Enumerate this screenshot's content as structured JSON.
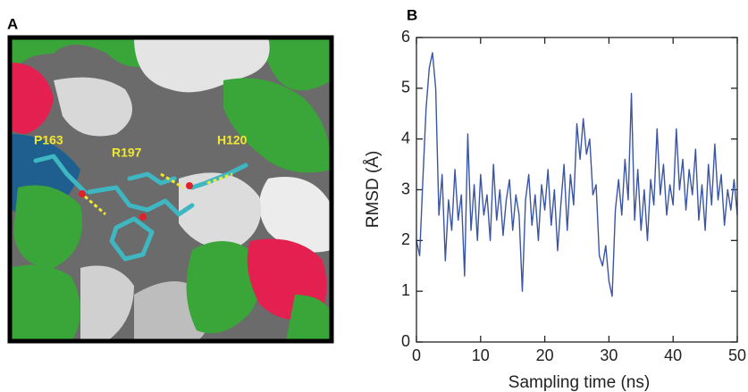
{
  "panel_a": {
    "label": "A",
    "residue_labels": [
      "P163",
      "R197",
      "H120"
    ]
  },
  "chart_data": {
    "type": "line",
    "panel_label": "B",
    "x_label": "Sampling time (ns)",
    "y_label": "RMSD (Å)",
    "color": "#3a55a4",
    "x": [
      0,
      0.5,
      1,
      1.5,
      2,
      2.5,
      3,
      3.5,
      4,
      4.5,
      5,
      5.5,
      6,
      6.5,
      7,
      7.5,
      8,
      8.5,
      9,
      9.5,
      10,
      10.5,
      11,
      11.5,
      12,
      12.5,
      13,
      13.5,
      14,
      14.5,
      15,
      15.5,
      16,
      16.5,
      17,
      17.5,
      18,
      18.5,
      19,
      19.5,
      20,
      20.5,
      21,
      21.5,
      22,
      22.5,
      23,
      23.5,
      24,
      24.5,
      25,
      25.5,
      26,
      26.5,
      27,
      27.5,
      28,
      28.5,
      29,
      29.5,
      30,
      30.5,
      31,
      31.5,
      32,
      32.5,
      33,
      33.5,
      34,
      34.5,
      35,
      35.5,
      36,
      36.5,
      37,
      37.5,
      38,
      38.5,
      39,
      39.5,
      40,
      40.5,
      41,
      41.5,
      42,
      42.5,
      43,
      43.5,
      44,
      44.5,
      45,
      45.5,
      46,
      46.5,
      47,
      47.5,
      48,
      48.5,
      49,
      49.5,
      50
    ],
    "values": [
      2.0,
      1.7,
      3.2,
      4.6,
      5.4,
      5.7,
      5.0,
      2.5,
      3.3,
      1.6,
      2.8,
      2.2,
      3.4,
      2.4,
      2.9,
      1.3,
      4.1,
      2.2,
      3.1,
      2.0,
      3.3,
      2.5,
      2.9,
      2.0,
      3.5,
      2.4,
      3.0,
      2.1,
      2.8,
      3.2,
      2.2,
      2.9,
      2.5,
      1.0,
      2.8,
      3.3,
      2.3,
      2.9,
      2.0,
      3.1,
      2.6,
      3.4,
      2.3,
      3.0,
      1.8,
      2.7,
      3.5,
      2.2,
      3.3,
      2.7,
      4.3,
      3.6,
      4.4,
      3.7,
      4.0,
      2.9,
      3.1,
      1.7,
      1.5,
      1.9,
      1.2,
      0.9,
      2.6,
      3.2,
      2.5,
      3.6,
      2.8,
      4.9,
      2.4,
      3.4,
      2.2,
      3.0,
      2.0,
      3.2,
      2.7,
      4.2,
      2.9,
      3.5,
      2.5,
      3.1,
      2.7,
      4.2,
      3.0,
      3.6,
      2.6,
      3.4,
      2.9,
      3.8,
      2.4,
      3.1,
      2.2,
      3.5,
      2.7,
      3.9,
      2.8,
      3.3,
      2.3,
      3.0,
      2.6,
      3.2,
      2.5
    ],
    "xlim": [
      0,
      50
    ],
    "ylim": [
      0,
      6
    ],
    "xticks": [
      0,
      10,
      20,
      30,
      40,
      50
    ],
    "yticks": [
      0,
      1,
      2,
      3,
      4,
      5,
      6
    ],
    "grid": false
  }
}
